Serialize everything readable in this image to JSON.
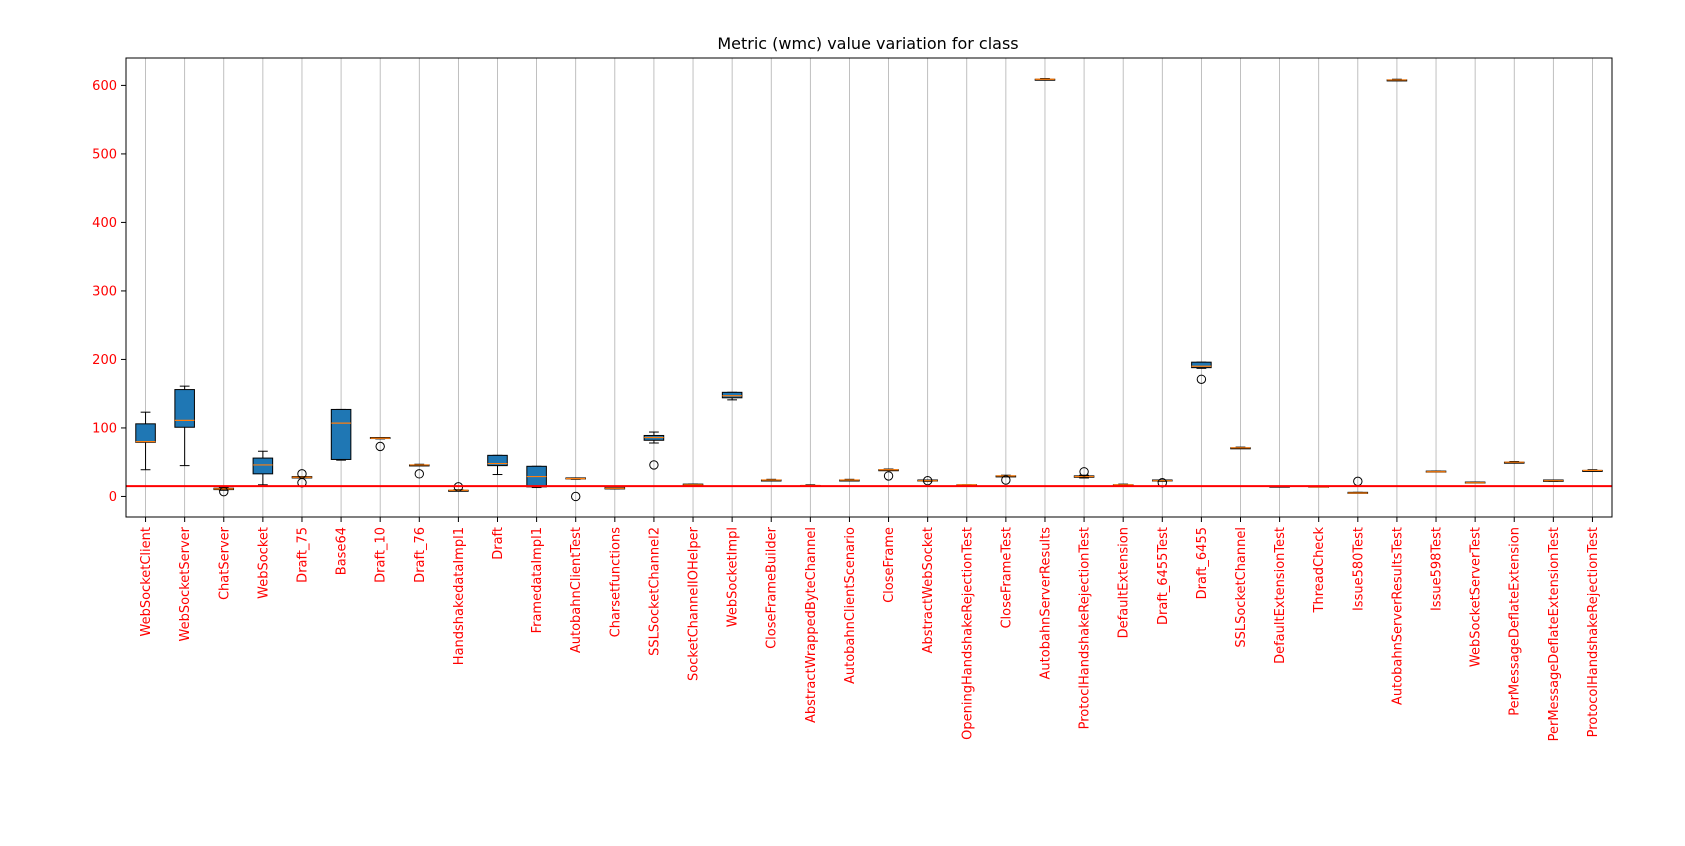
{
  "chart_data": {
    "type": "box",
    "title": "Metric (wmc) value variation for class",
    "xlabel": "",
    "ylabel": "",
    "ylim": [
      -30,
      640
    ],
    "yticks": [
      0,
      100,
      200,
      300,
      400,
      500,
      600
    ],
    "x_grid": true,
    "y_grid": false,
    "threshold_line": 15,
    "colors": {
      "box_fill": "#1f77b4",
      "median": "#ff7f0e",
      "threshold": "#ff0000",
      "tick_labels": "#ff0000",
      "grid": "#b0b0b0"
    },
    "categories": [
      "WebSocketClient",
      "WebSocketServer",
      "ChatServer",
      "WebSocket",
      "Draft_75",
      "Base64",
      "Draft_10",
      "Draft_76",
      "HandshakedataImpl1",
      "Draft",
      "FramedataImpl1",
      "AutobahnClientTest",
      "Charsetfunctions",
      "SSLSocketChannel2",
      "SocketChannelIOHelper",
      "WebSocketImpl",
      "CloseFrameBuilder",
      "AbstractWrappedByteChannel",
      "AutobahnClientScenario",
      "CloseFrame",
      "AbstractWebSocket",
      "OpeningHandshakeRejectionTest",
      "CloseFrameTest",
      "AutobahnServerResults",
      "ProtoclHandshakeRejectionTest",
      "DefaultExtension",
      "Draft_6455Test",
      "Draft_6455",
      "SSLSocketChannel",
      "DefaultExtensionTest",
      "ThreadCheck",
      "Issue580Test",
      "AutobahnServerResultsTest",
      "Issue598Test",
      "WebSocketServerTest",
      "PerMessageDeflateExtension",
      "PerMessageDeflateExtensionTest",
      "ProtocolHandshakeRejectionTest"
    ],
    "boxes": [
      {
        "whislo": 39,
        "q1": 79,
        "med": 80,
        "q3": 106,
        "whishi": 123,
        "fliers": []
      },
      {
        "whislo": 45,
        "q1": 101,
        "med": 111,
        "q3": 156,
        "whishi": 161,
        "fliers": []
      },
      {
        "whislo": 9,
        "q1": 10,
        "med": 11,
        "q3": 12,
        "whishi": 13,
        "fliers": [
          7
        ]
      },
      {
        "whislo": 17,
        "q1": 33,
        "med": 46,
        "q3": 56,
        "whishi": 66,
        "fliers": []
      },
      {
        "whislo": 27,
        "q1": 27,
        "med": 28,
        "q3": 29,
        "whishi": 29,
        "fliers": [
          33,
          20
        ]
      },
      {
        "whislo": 53,
        "q1": 54,
        "med": 107,
        "q3": 127,
        "whishi": 127,
        "fliers": []
      },
      {
        "whislo": 84,
        "q1": 85,
        "med": 85,
        "q3": 86,
        "whishi": 86,
        "fliers": [
          73
        ]
      },
      {
        "whislo": 45,
        "q1": 45,
        "med": 46,
        "q3": 46,
        "whishi": 47,
        "fliers": [
          33
        ]
      },
      {
        "whislo": 8,
        "q1": 8,
        "med": 9,
        "q3": 9,
        "whishi": 10,
        "fliers": [
          14
        ]
      },
      {
        "whislo": 32,
        "q1": 45,
        "med": 48,
        "q3": 60,
        "whishi": 60,
        "fliers": []
      },
      {
        "whislo": 13,
        "q1": 14,
        "med": 29,
        "q3": 44,
        "whishi": 44,
        "fliers": []
      },
      {
        "whislo": 25,
        "q1": 26,
        "med": 26,
        "q3": 27,
        "whishi": 27,
        "fliers": [
          0
        ]
      },
      {
        "whislo": 11,
        "q1": 11,
        "med": 12,
        "q3": 14,
        "whishi": 14,
        "fliers": []
      },
      {
        "whislo": 78,
        "q1": 82,
        "med": 86,
        "q3": 89,
        "whishi": 94,
        "fliers": [
          46
        ]
      },
      {
        "whislo": 16,
        "q1": 16,
        "med": 17,
        "q3": 18,
        "whishi": 18,
        "fliers": []
      },
      {
        "whislo": 141,
        "q1": 144,
        "med": 147,
        "q3": 152,
        "whishi": 152,
        "fliers": []
      },
      {
        "whislo": 23,
        "q1": 23,
        "med": 24,
        "q3": 24,
        "whishi": 25,
        "fliers": []
      },
      {
        "whislo": 15,
        "q1": 15,
        "med": 16,
        "q3": 16,
        "whishi": 17,
        "fliers": []
      },
      {
        "whislo": 23,
        "q1": 23,
        "med": 24,
        "q3": 24,
        "whishi": 25,
        "fliers": []
      },
      {
        "whislo": 38,
        "q1": 38,
        "med": 39,
        "q3": 39,
        "whishi": 40,
        "fliers": [
          30
        ]
      },
      {
        "whislo": 22,
        "q1": 23,
        "med": 23,
        "q3": 24,
        "whishi": 24,
        "fliers": [
          23
        ]
      },
      {
        "whislo": 16,
        "q1": 16,
        "med": 17,
        "q3": 17,
        "whishi": 17,
        "fliers": []
      },
      {
        "whislo": 29,
        "q1": 29,
        "med": 30,
        "q3": 30,
        "whishi": 31,
        "fliers": [
          24
        ]
      },
      {
        "whislo": 608,
        "q1": 608,
        "med": 609,
        "q3": 609,
        "whishi": 610,
        "fliers": []
      },
      {
        "whislo": 27,
        "q1": 28,
        "med": 29,
        "q3": 30,
        "whishi": 31,
        "fliers": [
          36
        ]
      },
      {
        "whislo": 16,
        "q1": 16,
        "med": 17,
        "q3": 17,
        "whishi": 18,
        "fliers": []
      },
      {
        "whislo": 22,
        "q1": 23,
        "med": 23,
        "q3": 24,
        "whishi": 24,
        "fliers": [
          20
        ]
      },
      {
        "whislo": 187,
        "q1": 188,
        "med": 190,
        "q3": 196,
        "whishi": 196,
        "fliers": [
          171
        ]
      },
      {
        "whislo": 70,
        "q1": 70,
        "med": 71,
        "q3": 71,
        "whishi": 72,
        "fliers": []
      },
      {
        "whislo": 14,
        "q1": 14,
        "med": 15,
        "q3": 15,
        "whishi": 15,
        "fliers": []
      },
      {
        "whislo": 14,
        "q1": 14,
        "med": 14,
        "q3": 15,
        "whishi": 15,
        "fliers": []
      },
      {
        "whislo": 5,
        "q1": 5,
        "med": 5,
        "q3": 6,
        "whishi": 6,
        "fliers": [
          22
        ]
      },
      {
        "whislo": 607,
        "q1": 607,
        "med": 608,
        "q3": 608,
        "whishi": 609,
        "fliers": []
      },
      {
        "whislo": 36,
        "q1": 36,
        "med": 36,
        "q3": 37,
        "whishi": 37,
        "fliers": []
      },
      {
        "whislo": 20,
        "q1": 20,
        "med": 20,
        "q3": 21,
        "whishi": 21,
        "fliers": []
      },
      {
        "whislo": 49,
        "q1": 49,
        "med": 50,
        "q3": 50,
        "whishi": 51,
        "fliers": []
      },
      {
        "whislo": 22,
        "q1": 22,
        "med": 23,
        "q3": 24,
        "whishi": 24,
        "fliers": []
      },
      {
        "whislo": 37,
        "q1": 37,
        "med": 38,
        "q3": 38,
        "whishi": 39,
        "fliers": []
      }
    ]
  }
}
